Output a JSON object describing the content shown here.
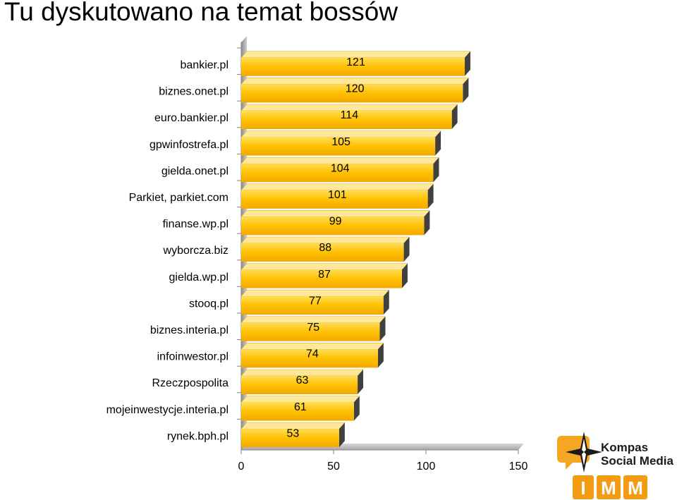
{
  "title": "Tu dyskutowano na temat bossów",
  "chart_data": {
    "type": "bar",
    "orientation": "horizontal",
    "title": "",
    "xlabel": "",
    "ylabel": "",
    "categories": [
      "bankier.pl",
      "biznes.onet.pl",
      "euro.bankier.pl",
      "gpwinfostrefa.pl",
      "gielda.onet.pl",
      "Parkiet, parkiet.com",
      "finanse.wp.pl",
      "wyborcza.biz",
      "gielda.wp.pl",
      "stooq.pl",
      "biznes.interia.pl",
      "infoinwestor.pl",
      "Rzeczpospolita",
      "mojeinwestycje.interia.pl",
      "rynek.bph.pl"
    ],
    "values": [
      121,
      120,
      114,
      105,
      104,
      101,
      99,
      88,
      87,
      77,
      75,
      74,
      63,
      61,
      53
    ],
    "xlim": [
      0,
      150
    ],
    "xticks": [
      0,
      50,
      100,
      150
    ],
    "bar_color": "#ffc000",
    "grid": false,
    "legend": "none"
  },
  "logo": {
    "line1": "Kompas",
    "line2": "Social Media",
    "letters": [
      "I",
      "M",
      "M"
    ]
  }
}
